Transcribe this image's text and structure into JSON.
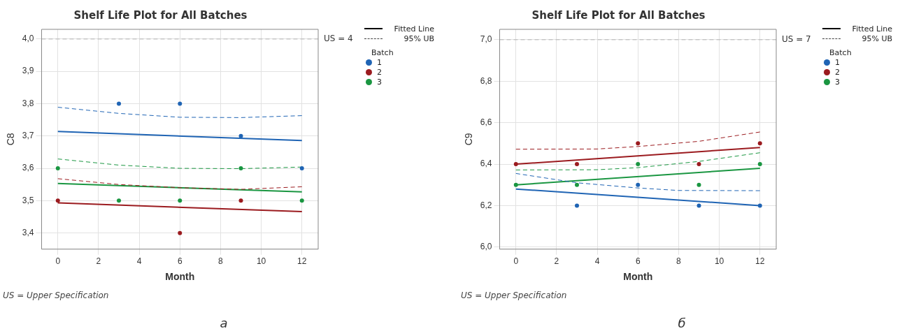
{
  "chart_data": [
    {
      "type": "scatter",
      "title": "Shelf Life Plot for All Batches",
      "xlabel": "Month",
      "ylabel": "C8",
      "legend_title": "Batch",
      "legend": "top right",
      "grid": true,
      "annotations": [
        "Fitted Line",
        "95% UB",
        "US = Upper Specification",
        "а"
      ],
      "xlim": [
        -0.8,
        12.8
      ],
      "xticks": [
        0,
        2,
        4,
        6,
        8,
        10,
        12
      ],
      "ylim": [
        3.35,
        4.03
      ],
      "yticks": [
        {
          "value": 3.4,
          "label": "3,4"
        },
        {
          "value": 3.5,
          "label": "3,5"
        },
        {
          "value": 3.6,
          "label": "3,6"
        },
        {
          "value": 3.7,
          "label": "3,7"
        },
        {
          "value": 3.8,
          "label": "3,8"
        },
        {
          "value": 3.9,
          "label": "3,9"
        },
        {
          "value": 4.0,
          "label": "4,0"
        }
      ],
      "ref_lines": [
        {
          "axis": "y",
          "value": 4.0,
          "label": "US = 4",
          "color": "#b4b4b4",
          "line_style": "dashed"
        }
      ],
      "series": [
        {
          "type": "line",
          "color": "#1f64b4",
          "line_style": "solid",
          "x": [
            0,
            12
          ],
          "values": [
            3.714,
            3.686
          ]
        },
        {
          "type": "line",
          "color": "#1f64b4",
          "line_style": "dashed",
          "x": [
            0,
            3,
            6,
            9,
            12
          ],
          "values": [
            3.789,
            3.77,
            3.758,
            3.757,
            3.763
          ]
        },
        {
          "type": "line",
          "color": "#9b1b1f",
          "line_style": "solid",
          "x": [
            0,
            12
          ],
          "values": [
            3.493,
            3.466
          ]
        },
        {
          "type": "line",
          "color": "#9b1b1f",
          "line_style": "dashed",
          "x": [
            0,
            3,
            6,
            9,
            12
          ],
          "values": [
            3.568,
            3.55,
            3.54,
            3.535,
            3.543
          ]
        },
        {
          "type": "line",
          "color": "#1a9641",
          "line_style": "solid",
          "x": [
            0,
            12
          ],
          "values": [
            3.553,
            3.527
          ]
        },
        {
          "type": "line",
          "color": "#1a9641",
          "line_style": "dashed",
          "x": [
            0,
            3,
            6,
            9,
            12
          ],
          "values": [
            3.629,
            3.61,
            3.6,
            3.599,
            3.604
          ]
        },
        {
          "type": "scatter",
          "name": "1",
          "color": "#1f64b4",
          "marker": "circle",
          "x": [
            3,
            6,
            9,
            12
          ],
          "values": [
            3.8,
            3.8,
            3.7,
            3.6
          ]
        },
        {
          "type": "scatter",
          "name": "2",
          "color": "#9b1b1f",
          "marker": "circle",
          "x": [
            0,
            6,
            9
          ],
          "values": [
            3.5,
            3.4,
            3.5
          ]
        },
        {
          "type": "scatter",
          "name": "3",
          "color": "#1a9641",
          "marker": "circle",
          "x": [
            0,
            3,
            6,
            9,
            12
          ],
          "values": [
            3.6,
            3.5,
            3.5,
            3.6,
            3.5
          ]
        }
      ]
    },
    {
      "type": "scatter",
      "title": "Shelf Life Plot for All Batches",
      "xlabel": "Month",
      "ylabel": "C9",
      "legend_title": "Batch",
      "legend": "top right",
      "grid": true,
      "annotations": [
        "Fitted Line",
        "95% UB",
        "US = Upper Specification",
        "б"
      ],
      "xlim": [
        -0.8,
        12.8
      ],
      "xticks": [
        0,
        2,
        4,
        6,
        8,
        10,
        12
      ],
      "ylim": [
        5.99,
        7.05
      ],
      "yticks": [
        {
          "value": 6.0,
          "label": "6,0"
        },
        {
          "value": 6.2,
          "label": "6,2"
        },
        {
          "value": 6.4,
          "label": "6,4"
        },
        {
          "value": 6.6,
          "label": "6,6"
        },
        {
          "value": 6.8,
          "label": "6,8"
        },
        {
          "value": 7.0,
          "label": "7,0"
        }
      ],
      "ref_lines": [
        {
          "axis": "y",
          "value": 7.0,
          "label": "US = 7",
          "color": "#b4b4b4",
          "line_style": "dashed"
        }
      ],
      "series": [
        {
          "type": "line",
          "color": "#1f64b4",
          "line_style": "solid",
          "x": [
            0,
            12
          ],
          "values": [
            6.28,
            6.2
          ]
        },
        {
          "type": "line",
          "color": "#1f64b4",
          "line_style": "dashed",
          "x": [
            0,
            3,
            6,
            8,
            12
          ],
          "values": [
            6.355,
            6.31,
            6.285,
            6.273,
            6.272
          ]
        },
        {
          "type": "line",
          "color": "#9b1b1f",
          "line_style": "solid",
          "x": [
            0,
            12
          ],
          "values": [
            6.4,
            6.48
          ]
        },
        {
          "type": "line",
          "color": "#9b1b1f",
          "line_style": "dashed",
          "x": [
            0,
            4,
            6,
            9,
            12
          ],
          "values": [
            6.472,
            6.473,
            6.485,
            6.51,
            6.555
          ]
        },
        {
          "type": "line",
          "color": "#1a9641",
          "line_style": "solid",
          "x": [
            0,
            12
          ],
          "values": [
            6.3,
            6.38
          ]
        },
        {
          "type": "line",
          "color": "#1a9641",
          "line_style": "dashed",
          "x": [
            0,
            4,
            6,
            9,
            12
          ],
          "values": [
            6.372,
            6.373,
            6.383,
            6.413,
            6.455
          ]
        },
        {
          "type": "scatter",
          "name": "1",
          "color": "#1f64b4",
          "marker": "circle",
          "x": [
            3,
            6,
            9,
            12
          ],
          "values": [
            6.2,
            6.3,
            6.2,
            6.2
          ]
        },
        {
          "type": "scatter",
          "name": "2",
          "color": "#9b1b1f",
          "marker": "circle",
          "x": [
            0,
            3,
            6,
            9,
            12
          ],
          "values": [
            6.4,
            6.4,
            6.5,
            6.4,
            6.5
          ]
        },
        {
          "type": "scatter",
          "name": "3",
          "color": "#1a9641",
          "marker": "circle",
          "x": [
            0,
            3,
            6,
            9,
            12
          ],
          "values": [
            6.3,
            6.3,
            6.4,
            6.3,
            6.4
          ]
        }
      ]
    }
  ]
}
